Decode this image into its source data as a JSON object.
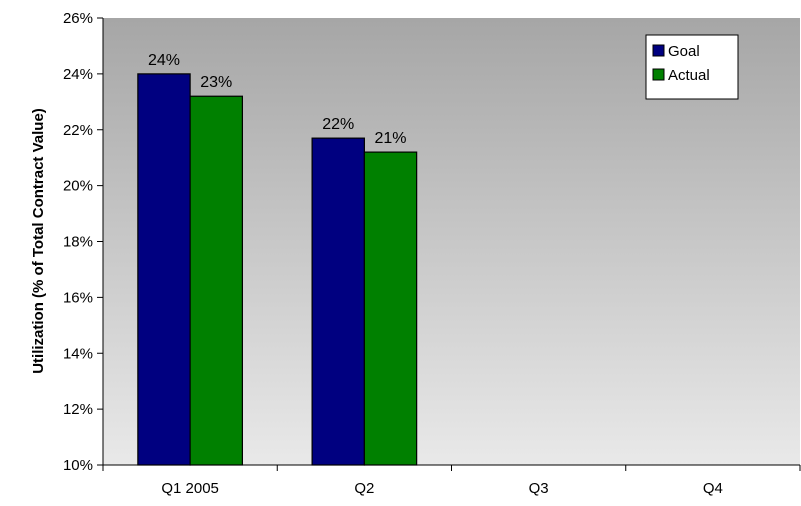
{
  "chart_data": {
    "type": "bar",
    "title": "",
    "xlabel": "",
    "ylabel": "Utilization (% of Total Contract Value)",
    "categories": [
      "Q1 2005",
      "Q2",
      "Q3",
      "Q4"
    ],
    "series": [
      {
        "name": "Goal",
        "color": "#000080",
        "values": [
          24.0,
          21.7,
          null,
          null
        ],
        "labels": [
          "24%",
          "22%",
          "",
          ""
        ]
      },
      {
        "name": "Actual",
        "color": "#008000",
        "values": [
          23.2,
          21.2,
          null,
          null
        ],
        "labels": [
          "23%",
          "21%",
          "",
          ""
        ]
      }
    ],
    "ylim": [
      10,
      26
    ],
    "yticks": [
      10,
      12,
      14,
      16,
      18,
      20,
      22,
      24,
      26
    ],
    "ytick_labels": [
      "10%",
      "12%",
      "14%",
      "16%",
      "18%",
      "20%",
      "22%",
      "24%",
      "26%"
    ],
    "grid": false,
    "legend_position": "top-right",
    "plot_background": "gray-gradient"
  }
}
